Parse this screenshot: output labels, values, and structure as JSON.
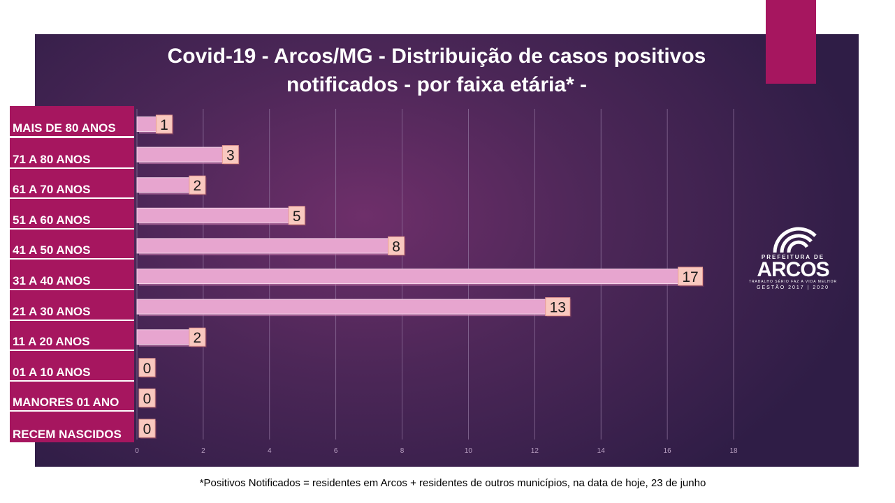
{
  "chart_data": {
    "type": "bar",
    "orientation": "horizontal",
    "title": "Covid-19 - Arcos/MG - Distribuição de casos positivos notificados - por faixa etária* -",
    "categories": [
      "MAIS DE 80 ANOS",
      "71 A 80 ANOS",
      "61 A 70 ANOS",
      "51 A 60 ANOS",
      "41 A 50 ANOS",
      "31 A 40 ANOS",
      "21 A 30 ANOS",
      "11 A 20 ANOS",
      "01 A 10 ANOS",
      "MANORES 01 ANO",
      "RECEM NASCIDOS"
    ],
    "values": [
      1,
      3,
      2,
      5,
      8,
      17,
      13,
      2,
      0,
      0,
      0
    ],
    "xlim": [
      0,
      18
    ],
    "xticks": [
      0,
      2,
      4,
      6,
      8,
      10,
      12,
      14,
      16,
      18
    ],
    "grid": "vertical",
    "legend": "none"
  },
  "footnote": "*Positivos Notificados = residentes em Arcos + residentes de outros municípios, na data de hoje, 23 de junho",
  "logo": {
    "prefix": "PREFEITURA DE",
    "name": "ARCOS",
    "tagline": "TRABALHO SÉRIO FAZ A VIDA MELHOR",
    "term": "GESTÃO 2017 | 2020"
  },
  "colors": {
    "panel": "#4d2758",
    "category_label_bg": "#a6165f",
    "bar_fill": "#e7a5cf",
    "bar_shadow": "#c77aad",
    "data_label_bg": "#f9c8bf",
    "accent": "#a6165f"
  }
}
